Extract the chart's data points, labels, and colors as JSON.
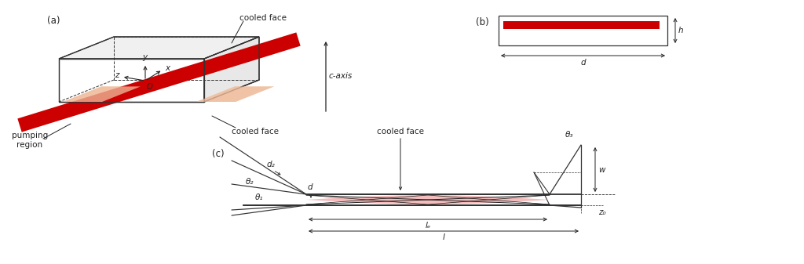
{
  "bg_color": "#ffffff",
  "red_color": "#cc0000",
  "light_red_color": "#f0a0a0",
  "peach_color": "#f0c0a0",
  "dark_gray": "#222222",
  "line_color": "#333333",
  "label_a": "(a)",
  "label_b": "(b)",
  "label_c": "(c)",
  "text_cooled_face_top": "cooled face",
  "text_cooled_face_bottom": "cooled face",
  "text_pumping_region": "pumping\nregion",
  "text_c_axis": "c-axis",
  "text_y": "y",
  "text_x": "x",
  "text_z": "z",
  "text_O": "O",
  "text_d": "d",
  "text_h": "h",
  "text_w": "w",
  "text_z0": "z₀",
  "text_l": "l",
  "text_ld": "lₑ",
  "text_theta1": "θ₁",
  "text_theta2": "θ₂",
  "text_theta3": "θ₃",
  "text_d_label": "d",
  "text_d2": "d₂",
  "figsize": [
    10.24,
    3.37
  ],
  "dpi": 100
}
